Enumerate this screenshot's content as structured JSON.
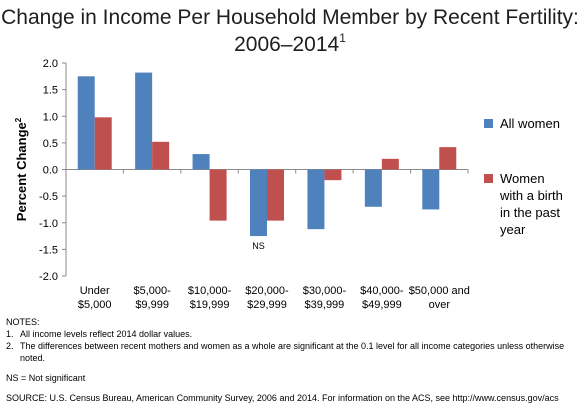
{
  "chart_data": {
    "type": "bar",
    "title": "Change in Income Per Household Member by Recent Fertility: 2006–2014",
    "title_footnote": "1",
    "ylabel": "Percent Change",
    "ylabel_footnote": "2",
    "ylim": [
      -2.0,
      2.0
    ],
    "yticks": [
      "2.0",
      "1.5",
      "1.0",
      "0.5",
      "0.0",
      "-0.5",
      "-1.0",
      "-1.5",
      "-2.0"
    ],
    "categories": [
      [
        "Under",
        "$5,000"
      ],
      [
        "$5,000-",
        "$9,999"
      ],
      [
        "$10,000-",
        "$19,999"
      ],
      [
        "$20,000-",
        "$29,999"
      ],
      [
        "$30,000-",
        "$39,999"
      ],
      [
        "$40,000-",
        "$49,999"
      ],
      [
        "$50,000 and",
        "over"
      ]
    ],
    "series": [
      {
        "name": "All women",
        "color": "#4f81bd",
        "values": [
          1.75,
          1.82,
          0.29,
          -1.25,
          -1.12,
          -0.7,
          -0.75
        ]
      },
      {
        "name": "Women with a birth in the past year",
        "color": "#c0504d",
        "values": [
          0.98,
          0.52,
          -0.96,
          -0.96,
          -0.2,
          0.2,
          0.42
        ]
      }
    ],
    "legend_lines": [
      [
        "All women"
      ],
      [
        "Women",
        "with a birth",
        "in the past",
        "year"
      ]
    ],
    "legend_position": "right",
    "grid": false,
    "annotations": [
      {
        "text": "NS",
        "category_index": 3,
        "series_index": 0
      }
    ]
  },
  "notes": {
    "heading": "NOTES:",
    "items": [
      {
        "num": "1.",
        "text": "All income levels reflect 2014 dollar values."
      },
      {
        "num": "2.",
        "text": "The differences between recent mothers and women as a whole are significant at the 0.1 level for all income categories unless otherwise noted."
      }
    ],
    "ns_note": "NS = Not significant",
    "source": "SOURCE: U.S. Census Bureau, American Community Survey, 2006 and 2014. For information on the ACS, see http://www.census.gov/acs"
  }
}
